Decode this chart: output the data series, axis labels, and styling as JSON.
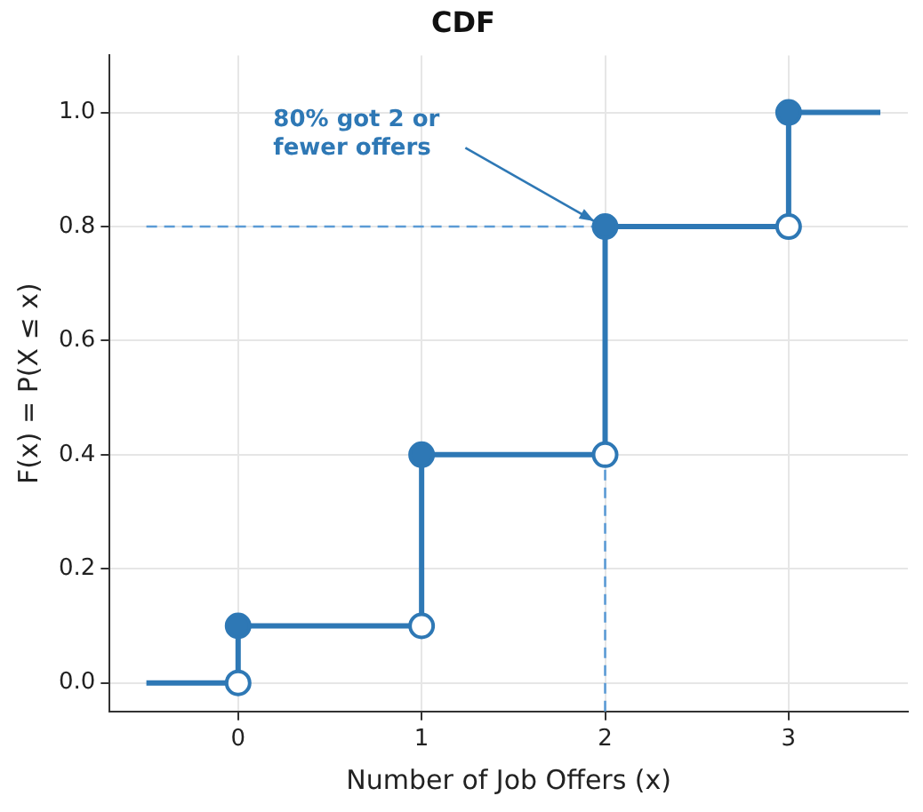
{
  "chart_data": {
    "type": "step",
    "title": "CDF",
    "xlabel": "Number of Job Offers (x)",
    "ylabel": "F(x) = P(X ≤ x)",
    "xlim": [
      -0.7,
      3.65
    ],
    "ylim": [
      -0.05,
      1.1
    ],
    "xticks": [
      0,
      1,
      2,
      3
    ],
    "yticks": [
      {
        "value": 0,
        "label": "0.0"
      },
      {
        "value": 0.2,
        "label": "0.2"
      },
      {
        "value": 0.4,
        "label": "0.4"
      },
      {
        "value": 0.6,
        "label": "0.6"
      },
      {
        "value": 0.8,
        "label": "0.8"
      },
      {
        "value": 1,
        "label": "1.0"
      }
    ],
    "grid": true,
    "legend": false,
    "series": [
      {
        "type": "step",
        "color": "#2e78b5",
        "marker": "none",
        "x": [
          -0.5,
          0,
          1,
          2,
          3,
          3.5
        ],
        "values": [
          0,
          0.1,
          0.4,
          0.8,
          1,
          1
        ]
      },
      {
        "type": "scatter",
        "color": "#2e78b5",
        "marker": "circle",
        "x": [
          0,
          1,
          2,
          3
        ],
        "values": [
          0.1,
          0.4,
          0.8,
          1
        ]
      },
      {
        "type": "scatter",
        "color": "#ffffff",
        "marker": "circle",
        "x": [
          0,
          1,
          2,
          3
        ],
        "values": [
          0,
          0.1,
          0.4,
          0.8
        ]
      }
    ],
    "ref_lines": [
      {
        "axis": "y",
        "value": 0.8,
        "color": "#5b9bd5",
        "line_style": "dashed"
      },
      {
        "axis": "x",
        "value": 2,
        "color": "#5b9bd5",
        "line_style": "dashed"
      }
    ],
    "annotations": [
      {
        "text": "80% got 2 or\nfewer offers",
        "x": 2,
        "y": 0.8
      }
    ]
  }
}
